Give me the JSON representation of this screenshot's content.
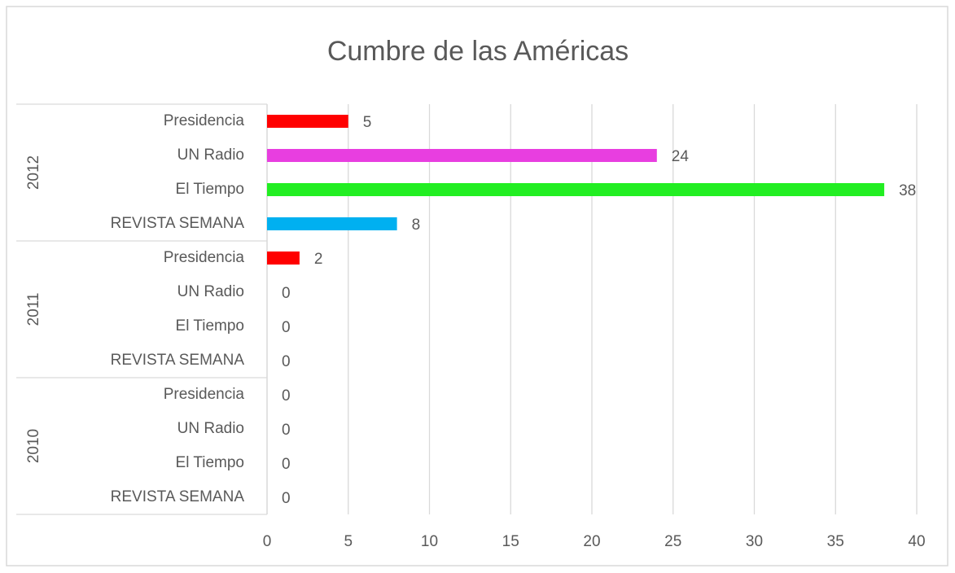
{
  "chart_data": {
    "type": "bar",
    "orientation": "horizontal",
    "title": "Cumbre de las Américas",
    "groups": [
      {
        "name": "2012",
        "categories": [
          "Presidencia",
          "UN Radio",
          "El Tiempo",
          "REVISTA SEMANA"
        ],
        "values": [
          5,
          24,
          38,
          8
        ]
      },
      {
        "name": "2011",
        "categories": [
          "Presidencia",
          "UN Radio",
          "El Tiempo",
          "REVISTA SEMANA"
        ],
        "values": [
          2,
          0,
          0,
          0
        ]
      },
      {
        "name": "2010",
        "categories": [
          "Presidencia",
          "UN Radio",
          "El Tiempo",
          "REVISTA SEMANA"
        ],
        "values": [
          0,
          0,
          0,
          0
        ]
      }
    ],
    "colors": [
      "#ff0000",
      "#e83ee0",
      "#22ee22",
      "#00b0f0"
    ],
    "xlim": [
      0,
      40
    ],
    "xticks": [
      0,
      5,
      10,
      15,
      20,
      25,
      30,
      35,
      40
    ],
    "grid": true
  }
}
